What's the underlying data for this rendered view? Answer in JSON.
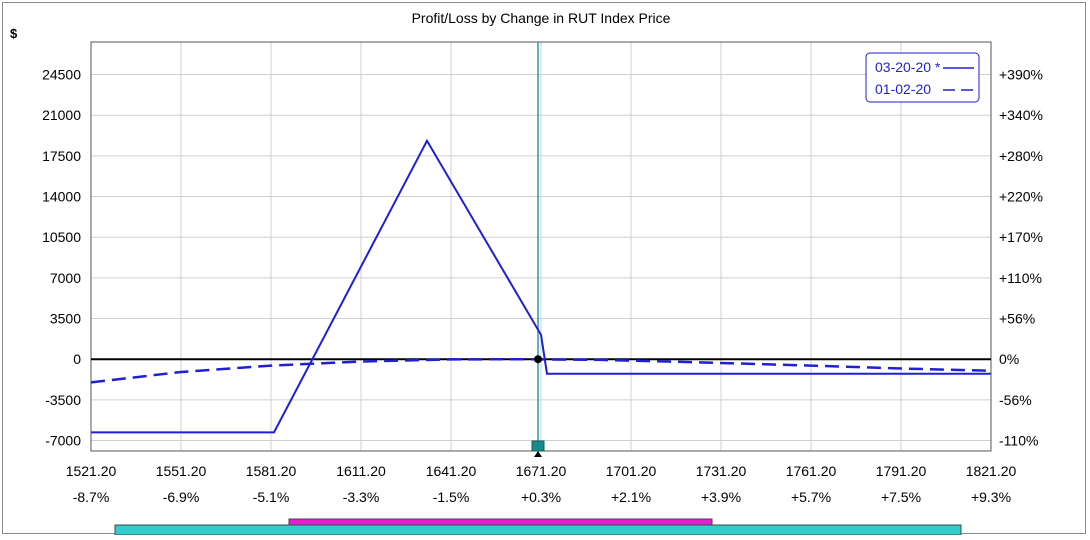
{
  "chart_data": {
    "type": "line",
    "title": "Profit/Loss by Change in RUT Index Price",
    "ylabel": "$",
    "xlim": [
      1521.2,
      1821.2
    ],
    "ylim": [
      -7900,
      27300
    ],
    "x_ticks": [
      1521.2,
      1551.2,
      1581.2,
      1611.2,
      1641.2,
      1671.2,
      1701.2,
      1731.2,
      1761.2,
      1791.2,
      1821.2
    ],
    "x_tick_labels": [
      "1521.20",
      "1551.20",
      "1581.20",
      "1611.20",
      "1641.20",
      "1671.20",
      "1701.20",
      "1731.20",
      "1761.20",
      "1791.20",
      "1821.20"
    ],
    "x_pct_labels": [
      "-8.7%",
      "-6.9%",
      "-5.1%",
      "-3.3%",
      "-1.5%",
      "+0.3%",
      "+2.1%",
      "+3.9%",
      "+5.7%",
      "+7.5%",
      "+9.3%"
    ],
    "y_ticks": [
      -7000,
      -3500,
      0,
      3500,
      7000,
      10500,
      14000,
      17500,
      21000,
      24500
    ],
    "y_tick_labels": [
      "-7000",
      "-3500",
      "0",
      "3500",
      "7000",
      "10500",
      "14000",
      "17500",
      "21000",
      "24500"
    ],
    "y2_tick_labels": [
      "-110%",
      "-56%",
      "0%",
      "+56%",
      "+110%",
      "+170%",
      "+220%",
      "+280%",
      "+340%",
      "+390%"
    ],
    "current_price": 1670.2,
    "current_pl": 0,
    "series": [
      {
        "name": "03-20-20 *",
        "style": "solid",
        "color": "#1f1fd6",
        "x": [
          1521.2,
          1582.2,
          1633.2,
          1671.2,
          1673.2,
          1821.2
        ],
        "y": [
          -6300,
          -6300,
          18800,
          2100,
          -1250,
          -1250
        ]
      },
      {
        "name": "01-02-20",
        "style": "dashed",
        "color": "#1f1fd6",
        "x": [
          1521.2,
          1551.2,
          1581.2,
          1611.2,
          1641.2,
          1666.2,
          1691.2,
          1721.2,
          1761.2,
          1791.2,
          1821.2
        ],
        "y": [
          -2000,
          -1100,
          -550,
          -200,
          -20,
          0,
          -60,
          -250,
          -550,
          -800,
          -1000
        ]
      }
    ],
    "grid": true,
    "legend_position": "top-right",
    "range_bars": [
      {
        "color": "#33cccc",
        "x": [
          1529.2,
          1811.2
        ]
      },
      {
        "color": "#e020d0",
        "x": [
          1587.2,
          1728.2
        ]
      }
    ]
  }
}
